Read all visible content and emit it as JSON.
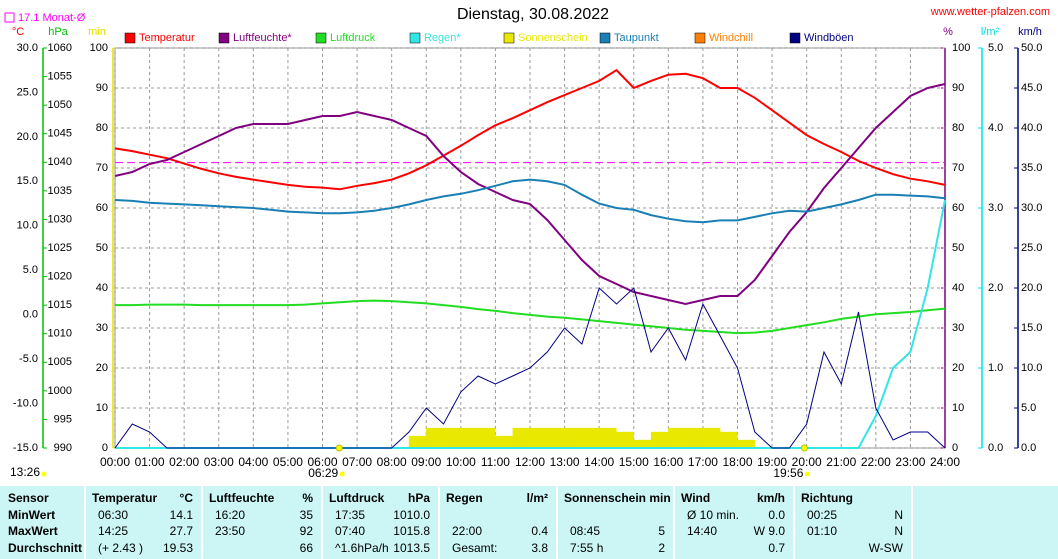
{
  "chart_data": {
    "type": "line",
    "title": "Dienstag, 30.08.2022",
    "website": "www.wetter-pfalzen.com",
    "month_avg": {
      "label": "17.1 Monat-Ø",
      "value": 17.1,
      "color": "#ff00ff"
    },
    "sunrise": "06:29",
    "sunset": "19:56",
    "daylength": "13:26",
    "grid": true,
    "xlim": [
      0,
      24
    ],
    "xticks": [
      {
        "value": 0,
        "label": "00:00"
      },
      {
        "value": 1,
        "label": "01:00"
      },
      {
        "value": 2,
        "label": "02:00"
      },
      {
        "value": 3,
        "label": "03:00"
      },
      {
        "value": 4,
        "label": "04:00"
      },
      {
        "value": 5,
        "label": "05:00"
      },
      {
        "value": 6,
        "label": "06:00"
      },
      {
        "value": 7,
        "label": "07:00"
      },
      {
        "value": 8,
        "label": "08:00"
      },
      {
        "value": 9,
        "label": "09:00"
      },
      {
        "value": 10,
        "label": "10:00"
      },
      {
        "value": 11,
        "label": "11:00"
      },
      {
        "value": 12,
        "label": "12:00"
      },
      {
        "value": 13,
        "label": "13:00"
      },
      {
        "value": 14,
        "label": "14:00"
      },
      {
        "value": 15,
        "label": "15:00"
      },
      {
        "value": 16,
        "label": "16:00"
      },
      {
        "value": 17,
        "label": "17:00"
      },
      {
        "value": 18,
        "label": "18:00"
      },
      {
        "value": 19,
        "label": "19:00"
      },
      {
        "value": 20,
        "label": "20:00"
      },
      {
        "value": 21,
        "label": "21:00"
      },
      {
        "value": 22,
        "label": "22:00"
      },
      {
        "value": 23,
        "label": "23:00"
      },
      {
        "value": 24,
        "label": "24:00"
      }
    ],
    "axes": [
      {
        "label": "°C",
        "color": "#ff0000",
        "lim": [
          -15,
          30
        ],
        "ticks": [
          {
            "value": 30,
            "label": "30.0"
          },
          {
            "value": 25,
            "label": "25.0"
          },
          {
            "value": 20,
            "label": "20.0"
          },
          {
            "value": 15,
            "label": "15.0"
          },
          {
            "value": 10,
            "label": "10.0"
          },
          {
            "value": 5,
            "label": "5.0"
          },
          {
            "value": 0,
            "label": "0.0"
          },
          {
            "value": -5,
            "label": "-5.0"
          },
          {
            "value": -10,
            "label": "-10.0"
          },
          {
            "value": -15,
            "label": "-15.0"
          }
        ]
      },
      {
        "label": "hPa",
        "color": "#00c000",
        "lim": [
          990,
          1060
        ],
        "ticks": [
          1060,
          1055,
          1050,
          1045,
          1040,
          1035,
          1030,
          1025,
          1020,
          1015,
          1010,
          1005,
          1000,
          995,
          990
        ]
      },
      {
        "label": "min",
        "color": "#e0e000",
        "lim": [
          0,
          100
        ],
        "ticks": [
          100,
          90,
          80,
          70,
          60,
          50,
          40,
          30,
          20,
          10,
          0
        ]
      },
      {
        "label": "%",
        "color": "#800080",
        "lim": [
          0,
          100
        ],
        "ticks": [
          100,
          90,
          80,
          70,
          60,
          50,
          40,
          30,
          20,
          10,
          0
        ]
      },
      {
        "label": "l/m²",
        "color": "#00e0e0",
        "lim": [
          0,
          5
        ],
        "ticks": [
          {
            "value": 5,
            "label": "5.0"
          },
          {
            "value": 4,
            "label": "4.0"
          },
          {
            "value": 3,
            "label": "3.0"
          },
          {
            "value": 2,
            "label": "2.0"
          },
          {
            "value": 1,
            "label": "1.0"
          },
          {
            "value": 0,
            "label": "0.0"
          }
        ]
      },
      {
        "label": "km/h",
        "color": "#000080",
        "lim": [
          0,
          50
        ],
        "ticks": [
          {
            "value": 50,
            "label": "50.0"
          },
          {
            "value": 45,
            "label": "45.0"
          },
          {
            "value": 40,
            "label": "40.0"
          },
          {
            "value": 35,
            "label": "35.0"
          },
          {
            "value": 30,
            "label": "30.0"
          },
          {
            "value": 25,
            "label": "25.0"
          },
          {
            "value": 20,
            "label": "20.0"
          },
          {
            "value": 15,
            "label": "15.0"
          },
          {
            "value": 10,
            "label": "10.0"
          },
          {
            "value": 5,
            "label": "5.0"
          },
          {
            "value": 0,
            "label": "0.0"
          }
        ]
      }
    ],
    "x": [
      0,
      0.5,
      1,
      1.5,
      2,
      2.5,
      3,
      3.5,
      4,
      4.5,
      5,
      5.5,
      6,
      6.5,
      7,
      7.5,
      8,
      8.5,
      9,
      9.5,
      10,
      10.5,
      11,
      11.5,
      12,
      12.5,
      13,
      13.5,
      14,
      14.5,
      15,
      15.5,
      16,
      16.5,
      17,
      17.5,
      18,
      18.5,
      19,
      19.5,
      20,
      20.5,
      21,
      21.5,
      22,
      22.5,
      23,
      23.5,
      24
    ],
    "series": [
      {
        "name": "Temperatur",
        "color": "#ff0000",
        "type": "line",
        "axis": 0,
        "values": [
          18.7,
          18.4,
          18.0,
          17.6,
          17.0,
          16.4,
          15.9,
          15.5,
          15.2,
          14.9,
          14.6,
          14.4,
          14.3,
          14.1,
          14.5,
          14.8,
          15.2,
          15.9,
          16.8,
          17.9,
          19.0,
          20.2,
          21.3,
          22.1,
          23.0,
          23.9,
          24.7,
          25.5,
          26.3,
          27.5,
          25.5,
          26.3,
          27.0,
          27.1,
          26.6,
          25.5,
          25.5,
          24.4,
          23.0,
          21.6,
          20.2,
          19.2,
          18.3,
          17.3,
          16.5,
          15.8,
          15.3,
          15.0,
          14.6
        ]
      },
      {
        "name": "Luftfeuchte*",
        "color": "#800080",
        "type": "line",
        "axis": 3,
        "values": [
          68,
          69,
          71,
          72,
          74,
          76,
          78,
          80,
          81,
          81,
          81,
          82,
          83,
          83,
          84,
          83,
          82,
          80,
          78,
          73,
          69,
          66,
          64,
          62,
          61,
          57,
          52,
          47,
          43,
          41,
          39,
          38,
          37,
          36,
          37,
          38,
          38,
          42,
          48,
          54,
          59,
          65,
          70,
          75,
          80,
          84,
          88,
          90,
          91
        ]
      },
      {
        "name": "Luftdruck",
        "color": "#22dd22",
        "type": "line",
        "axis": 1,
        "values": [
          1015.0,
          1015.0,
          1015.1,
          1015.1,
          1015.1,
          1015.0,
          1015.0,
          1015.0,
          1015.0,
          1015.0,
          1015.0,
          1015.1,
          1015.3,
          1015.5,
          1015.7,
          1015.8,
          1015.7,
          1015.5,
          1015.3,
          1015.0,
          1014.7,
          1014.3,
          1014.0,
          1013.6,
          1013.3,
          1013.0,
          1012.8,
          1012.5,
          1012.2,
          1011.9,
          1011.6,
          1011.3,
          1011.0,
          1010.7,
          1010.5,
          1010.3,
          1010.1,
          1010.2,
          1010.5,
          1011.0,
          1011.5,
          1012.0,
          1012.6,
          1013.0,
          1013.4,
          1013.6,
          1013.8,
          1014.1,
          1014.4
        ]
      },
      {
        "name": "Regen*",
        "color": "#33e6e6",
        "type": "line",
        "axis": 4,
        "values": [
          0,
          0,
          0,
          0,
          0,
          0,
          0,
          0,
          0,
          0,
          0,
          0,
          0,
          0,
          0,
          0,
          0,
          0,
          0,
          0,
          0,
          0,
          0,
          0,
          0,
          0,
          0,
          0,
          0,
          0,
          0,
          0,
          0,
          0,
          0,
          0,
          0,
          0,
          0,
          0,
          0,
          0,
          0,
          0,
          0.4,
          1.0,
          1.2,
          2.0,
          3.1
        ]
      },
      {
        "name": "Sonnenschein",
        "color": "#e8e800",
        "type": "bar",
        "axis": 2,
        "values": [
          0,
          0,
          0,
          0,
          0,
          0,
          0,
          0,
          0,
          0,
          0,
          0,
          0,
          0,
          0,
          0,
          0,
          3,
          5,
          5,
          5,
          5,
          3,
          5,
          5,
          5,
          5,
          5,
          5,
          4,
          2,
          4,
          5,
          5,
          5,
          4,
          2,
          0,
          0,
          0,
          0,
          0,
          0,
          0,
          0,
          0,
          0,
          0,
          0
        ]
      },
      {
        "name": "Taupunkt",
        "color": "#1a7fb5",
        "type": "line",
        "axis": 0,
        "values": [
          12.9,
          12.8,
          12.6,
          12.5,
          12.4,
          12.3,
          12.2,
          12.1,
          12.0,
          11.8,
          11.6,
          11.5,
          11.4,
          11.4,
          11.5,
          11.7,
          12.0,
          12.4,
          12.9,
          13.3,
          13.6,
          14.0,
          14.5,
          15.0,
          15.2,
          15.0,
          14.6,
          13.5,
          12.5,
          12.0,
          11.8,
          11.2,
          10.8,
          10.5,
          10.4,
          10.6,
          10.6,
          11.0,
          11.4,
          11.7,
          11.6,
          12.0,
          12.4,
          12.9,
          13.5,
          13.5,
          13.4,
          13.3,
          13.1
        ]
      },
      {
        "name": "Windchill",
        "color": "#ff8000",
        "type": "line",
        "axis": 0,
        "values": [
          null,
          null,
          null,
          null,
          null,
          null,
          null,
          null,
          null,
          null,
          null,
          null,
          null,
          null,
          null,
          null,
          null,
          null,
          null,
          null,
          null,
          null,
          null,
          null,
          null,
          null,
          null,
          null,
          null,
          null,
          null,
          null,
          null,
          null,
          null,
          null,
          null,
          null,
          null,
          null,
          null,
          null,
          null,
          null,
          null,
          null,
          null,
          null,
          null
        ]
      },
      {
        "name": "Windböen",
        "color": "#000080",
        "type": "line",
        "axis": 5,
        "values": [
          0,
          3,
          2,
          0,
          0,
          0,
          0,
          0,
          0,
          0,
          0,
          0,
          0,
          0,
          0,
          0,
          0,
          2,
          5,
          3,
          7,
          9,
          8,
          9,
          10,
          12,
          15,
          13,
          20,
          18,
          20,
          12,
          15,
          11,
          18,
          14,
          10,
          2,
          0,
          0,
          3,
          12,
          8,
          17,
          5,
          1,
          2,
          2,
          0
        ]
      }
    ]
  },
  "table": {
    "columns": [
      {
        "name": "Sensor"
      },
      {
        "name": "Temperatur",
        "unit": "°C"
      },
      {
        "name": "Luftfeuchte",
        "unit": "%"
      },
      {
        "name": "Luftdruck",
        "unit": "hPa"
      },
      {
        "name": "Regen",
        "unit": "l/m²"
      },
      {
        "name": "Sonnenschein min"
      },
      {
        "name": "Wind",
        "unit": "km/h"
      },
      {
        "name": "Richtung"
      }
    ],
    "rows": [
      {
        "label": "MinWert",
        "cells": [
          [
            "06:30",
            "14.1"
          ],
          [
            "16:20",
            "35"
          ],
          [
            "17:35",
            "1010.0"
          ],
          [
            null,
            null
          ],
          [
            null,
            null
          ],
          [
            "Ø 10 min.",
            "0.0"
          ],
          [
            "00:25",
            "N"
          ]
        ]
      },
      {
        "label": "MaxWert",
        "cells": [
          [
            "14:25",
            "27.7"
          ],
          [
            "23:50",
            "92"
          ],
          [
            "07:40",
            "1015.8"
          ],
          [
            "22:00",
            "0.4"
          ],
          [
            "08:45",
            "5"
          ],
          [
            "14:40",
            "W 9.0"
          ],
          [
            "01:10",
            "N"
          ]
        ]
      },
      {
        "label": "Durchschnitt",
        "cells": [
          [
            "(+ 2.43 )",
            "19.53"
          ],
          [
            null,
            "66"
          ],
          [
            "^1.6hPa/h",
            "1013.5"
          ],
          [
            "Gesamt:",
            "3.8"
          ],
          [
            "7:55 h",
            "2"
          ],
          [
            null,
            "0.7"
          ],
          [
            null,
            "W-SW"
          ]
        ]
      }
    ]
  }
}
